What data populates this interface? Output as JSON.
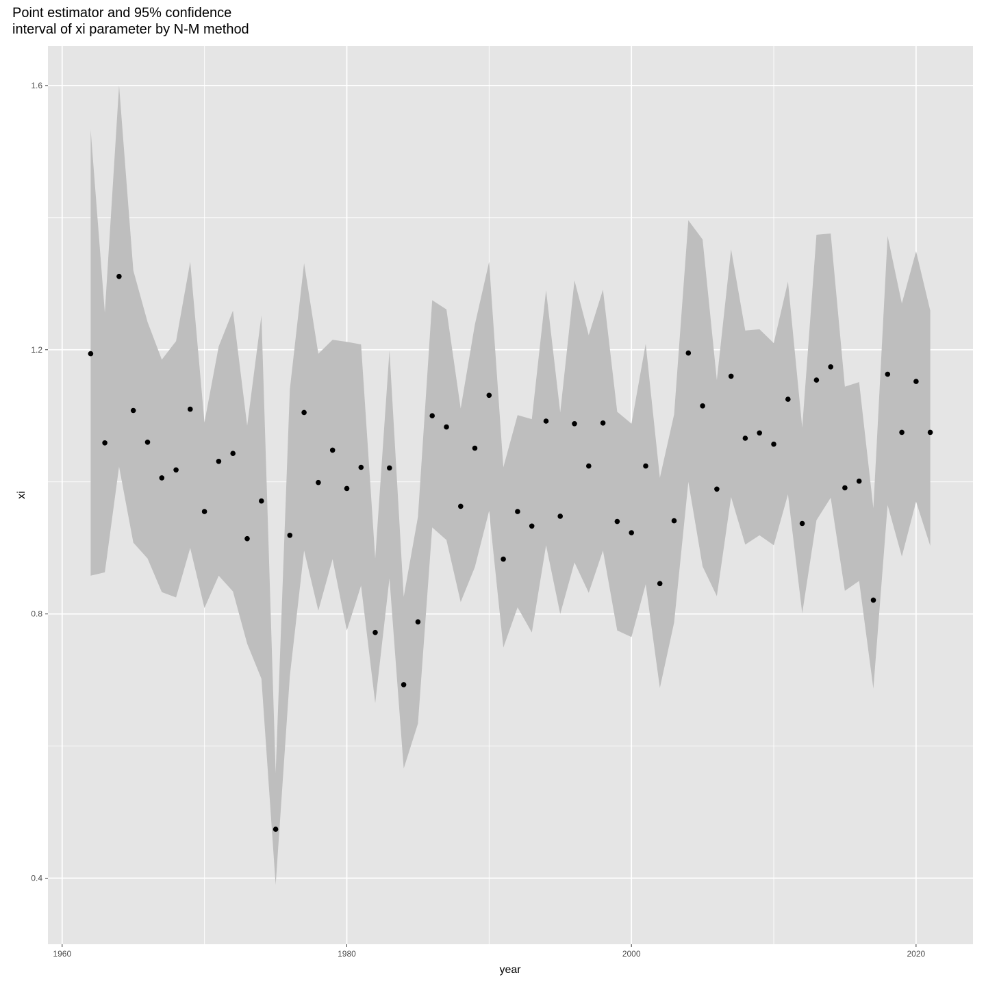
{
  "chart_data": {
    "type": "scatter",
    "title_lines": [
      "Point estimator and 95% confidence",
      "interval of xi parameter by N-M method"
    ],
    "xlabel": "year",
    "ylabel": "xi",
    "xlim": [
      1959.0,
      2024.0
    ],
    "ylim": [
      0.3,
      1.66
    ],
    "x_ticks": [
      1960,
      1980,
      2000,
      2020
    ],
    "y_ticks": [
      0.4,
      0.8,
      1.2,
      1.6
    ],
    "x_tick_labels": [
      "1960",
      "1980",
      "2000",
      "2020"
    ],
    "y_tick_labels": [
      "0.4",
      "0.8",
      "1.2",
      "1.6"
    ],
    "grid": true,
    "colors": {
      "panel": "#e5e5e5",
      "grid": "#ffffff",
      "ribbon": "#bebebe",
      "point": "#000000"
    },
    "series": [
      {
        "type": "ribbon",
        "x": [
          1962,
          1963,
          1964,
          1965,
          1966,
          1967,
          1968,
          1969,
          1970,
          1971,
          1972,
          1973,
          1974,
          1975,
          1976,
          1977,
          1978,
          1979,
          1980,
          1981,
          1982,
          1983,
          1984,
          1985,
          1986,
          1987,
          1988,
          1989,
          1990,
          1991,
          1992,
          1993,
          1994,
          1995,
          1996,
          1997,
          1998,
          1999,
          2000,
          2001,
          2002,
          2003,
          2004,
          2005,
          2006,
          2007,
          2008,
          2009,
          2010,
          2011,
          2012,
          2013,
          2014,
          2015,
          2016,
          2017,
          2018,
          2019,
          2020,
          2021
        ],
        "lower": [
          0.858,
          0.863,
          1.023,
          0.908,
          0.884,
          0.833,
          0.825,
          0.9,
          0.809,
          0.858,
          0.834,
          0.755,
          0.702,
          0.39,
          0.706,
          0.896,
          0.805,
          0.883,
          0.775,
          0.843,
          0.665,
          0.854,
          0.566,
          0.634,
          0.931,
          0.912,
          0.818,
          0.871,
          0.956,
          0.749,
          0.81,
          0.772,
          0.904,
          0.8,
          0.878,
          0.832,
          0.896,
          0.775,
          0.765,
          0.845,
          0.688,
          0.787,
          1.0,
          0.872,
          0.827,
          0.977,
          0.905,
          0.919,
          0.904,
          0.981,
          0.801,
          0.942,
          0.976,
          0.835,
          0.85,
          0.687,
          0.965,
          0.887,
          0.97,
          0.903
        ],
        "upper": [
          1.533,
          1.256,
          1.6,
          1.32,
          1.242,
          1.185,
          1.213,
          1.333,
          1.09,
          1.205,
          1.259,
          1.085,
          1.252,
          0.559,
          1.14,
          1.331,
          1.194,
          1.215,
          1.212,
          1.208,
          0.884,
          1.199,
          0.826,
          0.947,
          1.275,
          1.261,
          1.111,
          1.238,
          1.333,
          1.022,
          1.101,
          1.095,
          1.29,
          1.105,
          1.305,
          1.222,
          1.291,
          1.106,
          1.088,
          1.209,
          1.006,
          1.102,
          1.396,
          1.367,
          1.154,
          1.352,
          1.229,
          1.231,
          1.21,
          1.303,
          1.082,
          1.374,
          1.376,
          1.144,
          1.151,
          0.96,
          1.372,
          1.27,
          1.349,
          1.259
        ]
      },
      {
        "type": "points",
        "x": [
          1962,
          1963,
          1964,
          1965,
          1966,
          1967,
          1968,
          1969,
          1970,
          1971,
          1972,
          1973,
          1974,
          1975,
          1976,
          1977,
          1978,
          1979,
          1980,
          1981,
          1982,
          1983,
          1984,
          1985,
          1986,
          1987,
          1988,
          1989,
          1990,
          1991,
          1992,
          1993,
          1994,
          1995,
          1996,
          1997,
          1998,
          1999,
          2000,
          2001,
          2002,
          2003,
          2004,
          2005,
          2006,
          2007,
          2008,
          2009,
          2010,
          2011,
          2012,
          2013,
          2014,
          2015,
          2016,
          2017,
          2018,
          2019,
          2020,
          2021
        ],
        "y": [
          1.194,
          1.059,
          1.311,
          1.108,
          1.06,
          1.006,
          1.018,
          1.11,
          0.955,
          1.031,
          1.043,
          0.914,
          0.971,
          0.474,
          0.919,
          1.105,
          0.999,
          1.048,
          0.99,
          1.022,
          0.772,
          1.021,
          0.693,
          0.788,
          1.1,
          1.083,
          0.963,
          1.051,
          1.131,
          0.883,
          0.955,
          0.933,
          1.092,
          0.948,
          1.088,
          1.024,
          1.089,
          0.94,
          0.923,
          1.024,
          0.846,
          0.941,
          1.195,
          1.115,
          0.989,
          1.16,
          1.066,
          1.074,
          1.057,
          1.125,
          0.937,
          1.154,
          1.174,
          0.991,
          1.001,
          0.821,
          1.163,
          1.075,
          1.152,
          1.075
        ]
      }
    ]
  }
}
